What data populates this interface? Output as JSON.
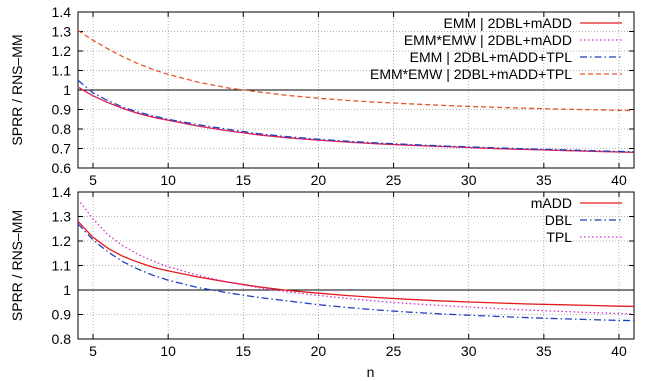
{
  "chart_data": [
    {
      "type": "line",
      "xlabel": "",
      "ylabel": "SPRR / RNS–MM",
      "xlim": [
        4,
        41
      ],
      "ylim": [
        0.6,
        1.4
      ],
      "xticks": [
        5,
        10,
        15,
        20,
        25,
        30,
        35,
        40
      ],
      "yticks": [
        0.6,
        0.7,
        0.8,
        0.9,
        1.0,
        1.1,
        1.2,
        1.3,
        1.4
      ],
      "ytick_labels": [
        "0.6",
        "0.7",
        "0.8",
        "0.9",
        "1",
        "1.1",
        "1.2",
        "1.3",
        "1.4"
      ],
      "reference_line": 1.0,
      "grid": true,
      "legend_position": "top-right",
      "x": [
        4,
        5,
        6,
        7,
        8,
        9,
        10,
        12,
        14,
        16,
        18,
        20,
        22,
        24,
        26,
        28,
        30,
        32,
        34,
        36,
        38,
        40,
        41
      ],
      "series": [
        {
          "name": "EMM | 2DBL+mADD",
          "color": "#e41a1c",
          "dash": "solid",
          "values": [
            1.015,
            0.97,
            0.935,
            0.905,
            0.88,
            0.86,
            0.845,
            0.815,
            0.79,
            0.77,
            0.755,
            0.743,
            0.733,
            0.724,
            0.717,
            0.711,
            0.705,
            0.699,
            0.695,
            0.69,
            0.686,
            0.682,
            0.68
          ]
        },
        {
          "name": "EMM*EMW | 2DBL+mADD",
          "color": "#cc33cc",
          "dash": "dotted",
          "values": [
            1.015,
            0.97,
            0.935,
            0.905,
            0.88,
            0.86,
            0.845,
            0.815,
            0.79,
            0.77,
            0.755,
            0.743,
            0.733,
            0.724,
            0.717,
            0.711,
            0.705,
            0.699,
            0.695,
            0.69,
            0.686,
            0.682,
            0.68
          ]
        },
        {
          "name": "EMM | 2DBL+mADD+TPL",
          "color": "#1f3fbf",
          "dash": "dashdot",
          "values": [
            1.05,
            0.985,
            0.945,
            0.912,
            0.887,
            0.867,
            0.85,
            0.822,
            0.798,
            0.776,
            0.76,
            0.747,
            0.737,
            0.728,
            0.721,
            0.714,
            0.708,
            0.703,
            0.698,
            0.694,
            0.689,
            0.685,
            0.683
          ]
        },
        {
          "name": "EMM*EMW | 2DBL+mADD+TPL",
          "color": "#e4572e",
          "dash": "dashed",
          "values": [
            1.305,
            1.255,
            1.21,
            1.17,
            1.135,
            1.105,
            1.08,
            1.04,
            1.01,
            0.99,
            0.972,
            0.958,
            0.946,
            0.937,
            0.929,
            0.922,
            0.916,
            0.911,
            0.906,
            0.902,
            0.899,
            0.896,
            0.895
          ]
        }
      ]
    },
    {
      "type": "line",
      "xlabel": "n",
      "ylabel": "SPRR / RNS–MM",
      "xlim": [
        4,
        41
      ],
      "ylim": [
        0.8,
        1.4
      ],
      "xticks": [
        5,
        10,
        15,
        20,
        25,
        30,
        35,
        40
      ],
      "yticks": [
        0.8,
        0.9,
        1.0,
        1.1,
        1.2,
        1.3,
        1.4
      ],
      "ytick_labels": [
        "0.8",
        "0.9",
        "1",
        "1.1",
        "1.2",
        "1.3",
        "1.4"
      ],
      "reference_line": 1.0,
      "grid": true,
      "legend_position": "top-right",
      "x": [
        4,
        5,
        6,
        7,
        8,
        9,
        10,
        12,
        14,
        16,
        18,
        20,
        22,
        24,
        26,
        28,
        30,
        32,
        34,
        36,
        38,
        40,
        41
      ],
      "series": [
        {
          "name": "mADD",
          "color": "#e41a1c",
          "dash": "solid",
          "values": [
            1.28,
            1.215,
            1.17,
            1.137,
            1.113,
            1.093,
            1.078,
            1.053,
            1.032,
            1.013,
            0.998,
            0.987,
            0.977,
            0.969,
            0.962,
            0.956,
            0.951,
            0.947,
            0.943,
            0.94,
            0.937,
            0.934,
            0.933
          ]
        },
        {
          "name": "DBL",
          "color": "#1f3fbf",
          "dash": "dashdot",
          "values": [
            1.27,
            1.205,
            1.155,
            1.115,
            1.085,
            1.06,
            1.04,
            1.01,
            0.988,
            0.97,
            0.955,
            0.94,
            0.928,
            0.918,
            0.91,
            0.903,
            0.897,
            0.892,
            0.887,
            0.883,
            0.879,
            0.876,
            0.875
          ]
        },
        {
          "name": "TPL",
          "color": "#cc33cc",
          "dash": "dotted",
          "values": [
            1.37,
            1.29,
            1.225,
            1.18,
            1.145,
            1.118,
            1.095,
            1.06,
            1.032,
            1.01,
            0.992,
            0.978,
            0.965,
            0.954,
            0.945,
            0.937,
            0.93,
            0.924,
            0.918,
            0.913,
            0.908,
            0.904,
            0.902
          ]
        }
      ]
    }
  ]
}
